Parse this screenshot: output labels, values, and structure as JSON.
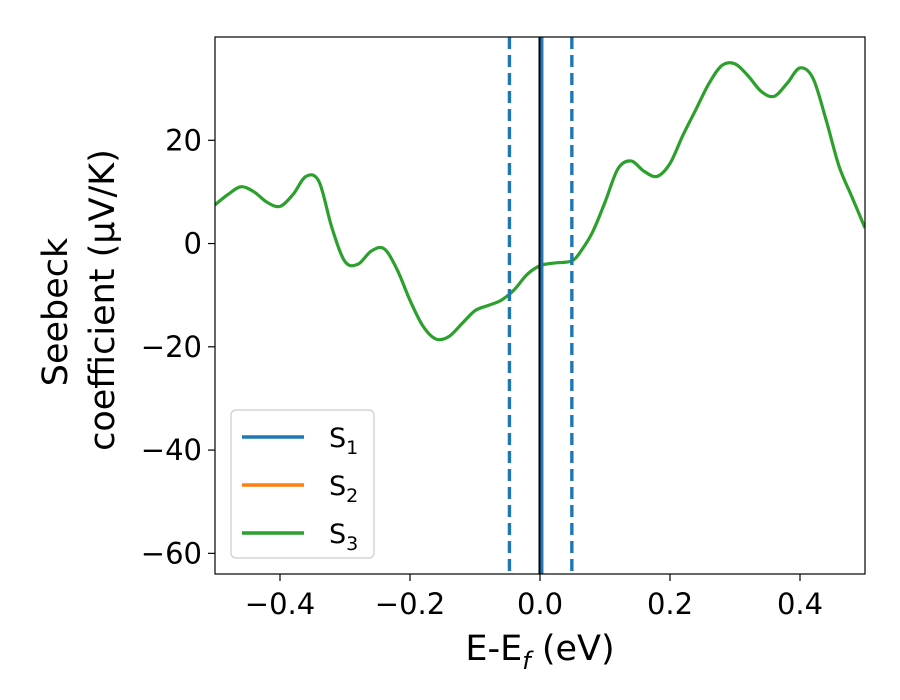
{
  "chart_data": {
    "type": "line",
    "xlabel": {
      "main": "E-E",
      "sub": "f",
      "tail": " (eV)"
    },
    "ylabel": {
      "line1": "Seebeck",
      "line2": "coefficient  (μV/K)"
    },
    "xlim": [
      -0.5,
      0.5
    ],
    "ylim": [
      -64,
      40
    ],
    "xticks": [
      -0.4,
      -0.2,
      0.0,
      0.2,
      0.4
    ],
    "xtick_labels": [
      "−0.4",
      "−0.2",
      "0.0",
      "0.2",
      "0.4"
    ],
    "yticks": [
      -60,
      -40,
      -20,
      0,
      20
    ],
    "ytick_labels": [
      "−60",
      "−40",
      "−20",
      "0",
      "20"
    ],
    "grid": false,
    "legend_position": "lower-left",
    "colors": {
      "s1": "#1f77b4",
      "s2": "#ff7f0e",
      "s3": "#2ca02c",
      "fermi_line": "#000000",
      "window_lines": "#1f77b4"
    },
    "series": [
      {
        "name": "S",
        "sub": "1",
        "color": "#1f77b4",
        "x": [],
        "y": []
      },
      {
        "name": "S",
        "sub": "2",
        "color": "#ff7f0e",
        "x": [],
        "y": []
      },
      {
        "name": "S",
        "sub": "3",
        "color": "#2ca02c",
        "x": [
          -0.5,
          -0.48,
          -0.46,
          -0.44,
          -0.42,
          -0.4,
          -0.38,
          -0.36,
          -0.34,
          -0.32,
          -0.3,
          -0.28,
          -0.26,
          -0.24,
          -0.22,
          -0.2,
          -0.18,
          -0.16,
          -0.14,
          -0.12,
          -0.1,
          -0.08,
          -0.06,
          -0.04,
          -0.02,
          0.0,
          0.02,
          0.04,
          0.05,
          0.06,
          0.08,
          0.1,
          0.12,
          0.14,
          0.16,
          0.18,
          0.2,
          0.22,
          0.24,
          0.26,
          0.28,
          0.3,
          0.32,
          0.34,
          0.36,
          0.38,
          0.4,
          0.42,
          0.44,
          0.46,
          0.48,
          0.5
        ],
        "y": [
          7.5,
          9.5,
          11.0,
          10.0,
          8.0,
          7.2,
          9.5,
          13.0,
          12.0,
          3.0,
          -3.5,
          -4.0,
          -1.5,
          -1.0,
          -5.0,
          -11.0,
          -16.0,
          -18.5,
          -18.0,
          -15.5,
          -13.0,
          -12.0,
          -11.0,
          -9.0,
          -6.0,
          -4.3,
          -3.8,
          -3.6,
          -3.3,
          -2.0,
          2.0,
          8.0,
          14.5,
          16.0,
          14.0,
          13.0,
          15.5,
          21.0,
          26.0,
          31.0,
          34.5,
          34.8,
          32.5,
          29.5,
          28.5,
          31.0,
          34.0,
          32.0,
          24.0,
          15.0,
          9.0,
          3.0
        ]
      }
    ],
    "vlines": [
      {
        "x": -0.047,
        "style": "dashed",
        "color": "#1f77b4"
      },
      {
        "x": 0.0,
        "style": "solid",
        "color": "#000000"
      },
      {
        "x": 0.003,
        "style": "solid",
        "color": "#1f77b4"
      },
      {
        "x": 0.049,
        "style": "dashed",
        "color": "#1f77b4"
      }
    ]
  }
}
